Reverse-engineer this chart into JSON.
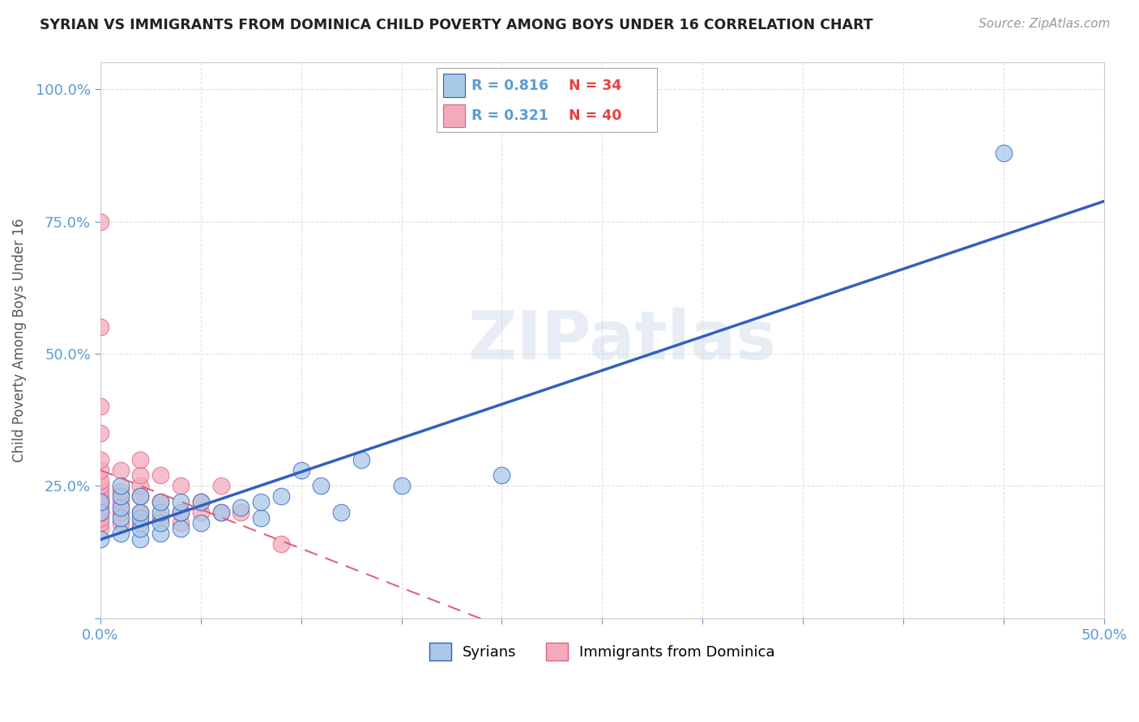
{
  "title": "SYRIAN VS IMMIGRANTS FROM DOMINICA CHILD POVERTY AMONG BOYS UNDER 16 CORRELATION CHART",
  "source": "Source: ZipAtlas.com",
  "ylabel": "Child Poverty Among Boys Under 16",
  "xlim": [
    0.0,
    0.5
  ],
  "ylim": [
    0.0,
    1.05
  ],
  "legend_r1": "R = 0.816",
  "legend_n1": "N = 34",
  "legend_r2": "R = 0.321",
  "legend_n2": "N = 40",
  "color_syrian": "#a8c8e8",
  "color_dominica": "#f4aabb",
  "color_line_syrian": "#3060c0",
  "color_line_dominica": "#e06080",
  "color_title": "#222222",
  "color_source": "#999999",
  "color_axis_label": "#555555",
  "color_tick": "#5b9bd5",
  "color_r_val": "#5b9bd5",
  "color_n_val": "#e84040",
  "watermark": "ZIPatlas",
  "syrians_x": [
    0.0,
    0.0,
    0.0,
    0.01,
    0.01,
    0.01,
    0.01,
    0.01,
    0.02,
    0.02,
    0.02,
    0.02,
    0.02,
    0.03,
    0.03,
    0.03,
    0.03,
    0.04,
    0.04,
    0.04,
    0.05,
    0.05,
    0.06,
    0.07,
    0.08,
    0.08,
    0.09,
    0.1,
    0.11,
    0.12,
    0.13,
    0.15,
    0.2,
    0.45
  ],
  "syrians_y": [
    0.15,
    0.2,
    0.22,
    0.16,
    0.19,
    0.21,
    0.23,
    0.25,
    0.15,
    0.17,
    0.19,
    0.2,
    0.23,
    0.16,
    0.18,
    0.2,
    0.22,
    0.17,
    0.2,
    0.22,
    0.18,
    0.22,
    0.2,
    0.21,
    0.19,
    0.22,
    0.23,
    0.28,
    0.25,
    0.2,
    0.3,
    0.25,
    0.27,
    0.88
  ],
  "dominica_x": [
    0.0,
    0.0,
    0.0,
    0.0,
    0.0,
    0.0,
    0.0,
    0.0,
    0.0,
    0.0,
    0.0,
    0.0,
    0.0,
    0.0,
    0.0,
    0.0,
    0.0,
    0.01,
    0.01,
    0.01,
    0.01,
    0.01,
    0.02,
    0.02,
    0.02,
    0.02,
    0.02,
    0.02,
    0.03,
    0.03,
    0.03,
    0.04,
    0.04,
    0.04,
    0.05,
    0.05,
    0.06,
    0.06,
    0.07,
    0.09
  ],
  "dominica_y": [
    0.17,
    0.18,
    0.19,
    0.2,
    0.21,
    0.22,
    0.22,
    0.23,
    0.24,
    0.25,
    0.26,
    0.28,
    0.3,
    0.35,
    0.4,
    0.55,
    0.75,
    0.18,
    0.2,
    0.22,
    0.24,
    0.28,
    0.18,
    0.2,
    0.23,
    0.25,
    0.27,
    0.3,
    0.19,
    0.22,
    0.27,
    0.18,
    0.2,
    0.25,
    0.2,
    0.22,
    0.2,
    0.25,
    0.2,
    0.14
  ],
  "bg_color": "#ffffff",
  "grid_color": "#dddddd"
}
